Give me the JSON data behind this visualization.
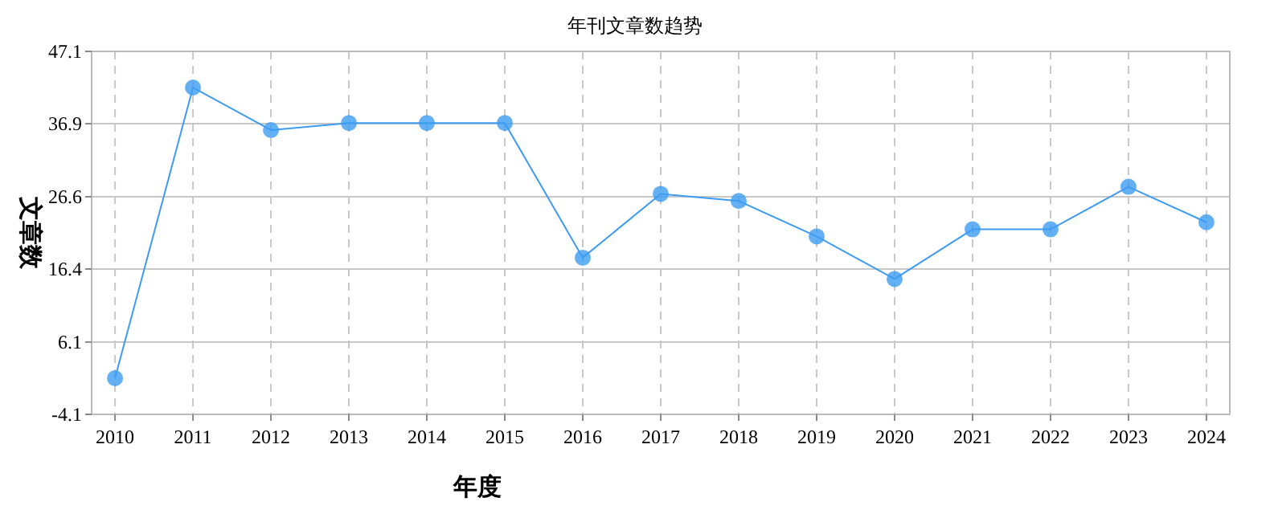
{
  "chart_data": {
    "type": "line",
    "title": "年刊文章数趋势",
    "xlabel": "年度",
    "ylabel": "文章数",
    "categories": [
      "2010",
      "2011",
      "2012",
      "2013",
      "2014",
      "2015",
      "2016",
      "2017",
      "2018",
      "2019",
      "2020",
      "2021",
      "2022",
      "2023",
      "2024"
    ],
    "series": [
      {
        "color": "#3d9cf2",
        "values": [
          1,
          42,
          36,
          37,
          37,
          37,
          18,
          27,
          26,
          21,
          15,
          22,
          22,
          28,
          23
        ]
      }
    ],
    "ylim": [
      -4.1,
      47.1
    ],
    "yticks": [
      -4.1,
      6.1,
      16.4,
      26.6,
      36.9,
      47.1
    ],
    "grid": true,
    "marker": "circle",
    "line_style": "solid"
  }
}
